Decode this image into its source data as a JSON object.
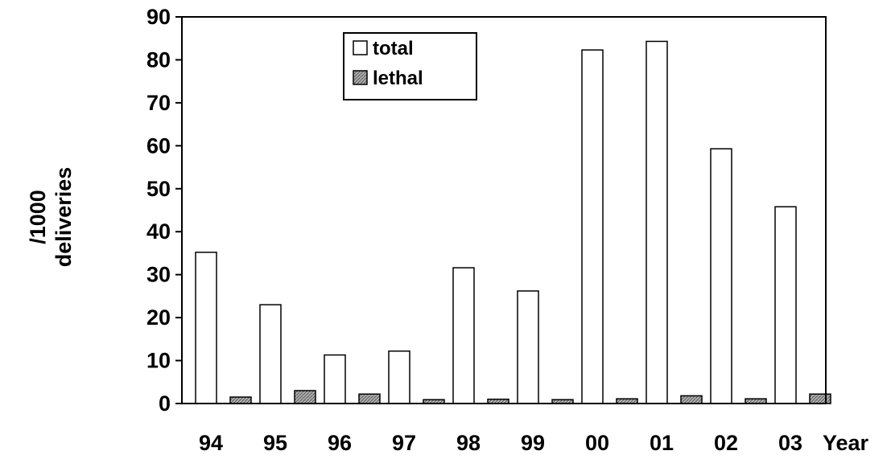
{
  "chart_data": {
    "type": "bar",
    "categories": [
      "94",
      "95",
      "96",
      "97",
      "98",
      "99",
      "00",
      "01",
      "02",
      "03"
    ],
    "series": [
      {
        "name": "total",
        "values": [
          35.2,
          23.0,
          11.3,
          12.2,
          31.6,
          26.2,
          82.3,
          84.3,
          59.3,
          45.8
        ]
      },
      {
        "name": "lethal",
        "values": [
          1.5,
          3.0,
          2.2,
          0.9,
          1.0,
          0.9,
          1.1,
          1.8,
          1.1,
          2.2
        ]
      }
    ],
    "ylabel_lines": [
      "/1000",
      "deliveries"
    ],
    "xlabel": "Year",
    "ylim": [
      0,
      90
    ],
    "yticks": [
      "0",
      "10",
      "20",
      "30",
      "40",
      "50",
      "60",
      "70",
      "80",
      "90"
    ],
    "grid": false,
    "legend_position": "top-center",
    "colors": {
      "total": "#ffffff",
      "lethal_fill": "#8c8c8c",
      "stroke": "#000000"
    }
  }
}
